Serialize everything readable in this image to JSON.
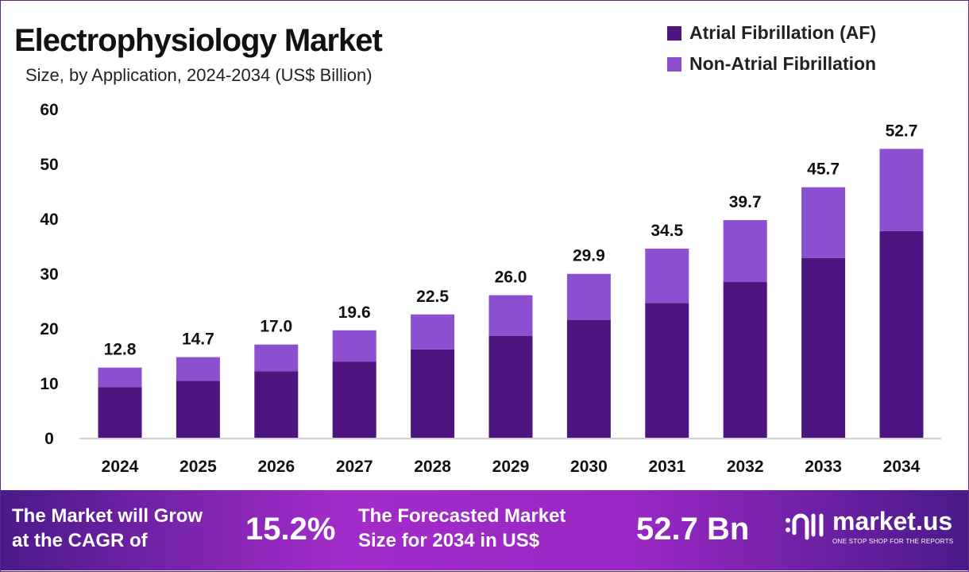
{
  "chart_data": {
    "type": "bar",
    "stacked": true,
    "title": "Electrophysiology Market",
    "subtitle": "Size, by Application, 2024-2034 (US$ Billion)",
    "categories": [
      "2024",
      "2025",
      "2026",
      "2027",
      "2028",
      "2029",
      "2030",
      "2031",
      "2032",
      "2033",
      "2034"
    ],
    "series": [
      {
        "name": "Atrial Fibrillation (AF)",
        "color": "#4e1580",
        "values": [
          9.2,
          10.4,
          12.1,
          13.9,
          16.1,
          18.6,
          21.5,
          24.6,
          28.4,
          32.8,
          37.7
        ]
      },
      {
        "name": "Non-Atrial Fibrillation",
        "color": "#8b4fcf",
        "values": [
          3.6,
          4.3,
          4.9,
          5.7,
          6.4,
          7.4,
          8.4,
          9.9,
          11.3,
          12.9,
          15.0
        ]
      }
    ],
    "totals": [
      "12.8",
      "14.7",
      "17.0",
      "19.6",
      "22.5",
      "26.0",
      "29.9",
      "34.5",
      "39.7",
      "45.7",
      "52.7"
    ],
    "ylim": [
      0,
      60
    ],
    "yticks": [
      "0",
      "10",
      "20",
      "30",
      "40",
      "50",
      "60"
    ],
    "grid": false,
    "legend": "top-right"
  },
  "footer": {
    "cagr_label_1": "The Market will Grow",
    "cagr_label_2": "at the CAGR of",
    "cagr_value": "15.2%",
    "forecast_label_1": "The Forecasted Market",
    "forecast_label_2": "Size for 2034 in US$",
    "forecast_value": "52.7 Bn",
    "logo_name": "market.us",
    "logo_tagline": "ONE STOP SHOP FOR THE REPORTS"
  }
}
